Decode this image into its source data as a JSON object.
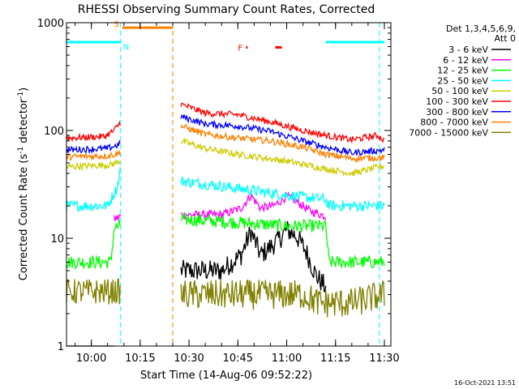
{
  "chart_data": {
    "type": "line",
    "title": "RHESSI Observing Summary Count Rates, Corrected",
    "xlabel": "Start Time (14-Aug-06 09:52:22)",
    "ylabel_parts": {
      "base": "Corrected Count Rate (s",
      "sup1": "-1",
      "mid": " detector",
      "sup2": "-1",
      "end": ")"
    },
    "y_scale": "log",
    "ylim": [
      1,
      1000
    ],
    "y_ticks": [
      {
        "value": 1,
        "label": "1"
      },
      {
        "value": 10,
        "label": "10"
      },
      {
        "value": 100,
        "label": "100"
      },
      {
        "value": 1000,
        "label": "1000"
      }
    ],
    "xlim": [
      "09:52:22",
      "11:32:00"
    ],
    "x_ticks": [
      {
        "time": "10:00",
        "label": "10:00"
      },
      {
        "time": "10:15",
        "label": "10:15"
      },
      {
        "time": "10:30",
        "label": "10:30"
      },
      {
        "time": "10:45",
        "label": "10:45"
      },
      {
        "time": "11:00",
        "label": "11:00"
      },
      {
        "time": "11:15",
        "label": "11:15"
      },
      {
        "time": "11:30",
        "label": "11:30"
      }
    ],
    "legend_header": [
      "Det 1,3,4,5,6,9,",
      "Att 0"
    ],
    "legend_position": "top-right",
    "series": [
      {
        "name": "3 - 6 keV",
        "color": "#000000",
        "segments": [
          {
            "start": "09:52:22",
            "end": "10:07:00",
            "level": 0,
            "noise": 0
          },
          {
            "start": "10:27:30",
            "end": "11:12:00",
            "points": [
              [
                "10:27:30",
                5.0
              ],
              [
                "10:40:00",
                5.0
              ],
              [
                "10:46:00",
                7.0
              ],
              [
                "10:49:00",
                11.5
              ],
              [
                "10:52:00",
                7.0
              ],
              [
                "10:54:00",
                7.8
              ],
              [
                "10:58:00",
                10.0
              ],
              [
                "11:00:00",
                12.0
              ],
              [
                "11:03:00",
                10.5
              ],
              [
                "11:06:00",
                7.5
              ],
              [
                "11:09:00",
                4.5
              ],
              [
                "11:12:00",
                3.5
              ]
            ],
            "noise": 0.1
          }
        ]
      },
      {
        "name": "6 - 12 keV",
        "color": "#ff00ff",
        "segments": [
          {
            "start": "10:07:00",
            "end": "10:09:00",
            "points": [
              [
                "10:07:00",
                15.0
              ],
              [
                "10:09:00",
                16.0
              ]
            ],
            "noise": 0.04
          },
          {
            "start": "10:27:30",
            "end": "11:12:00",
            "points": [
              [
                "10:27:30",
                16.5
              ],
              [
                "10:40:00",
                16.5
              ],
              [
                "10:46:00",
                19.0
              ],
              [
                "10:49:00",
                25.0
              ],
              [
                "10:52:00",
                19.0
              ],
              [
                "10:56:00",
                20.0
              ],
              [
                "11:00:00",
                24.5
              ],
              [
                "11:03:00",
                22.0
              ],
              [
                "11:07:00",
                18.0
              ],
              [
                "11:12:00",
                16.0
              ]
            ],
            "noise": 0.04
          }
        ]
      },
      {
        "name": "12 - 25 keV",
        "color": "#00ff00",
        "segments": [
          {
            "start": "09:52:22",
            "end": "10:09:00",
            "points": [
              [
                "09:52:22",
                6.0
              ],
              [
                "10:06:00",
                6.0
              ],
              [
                "10:07:00",
                12.5
              ],
              [
                "10:09:00",
                13.0
              ]
            ],
            "noise": 0.06
          },
          {
            "start": "10:27:30",
            "end": "11:30:00",
            "points": [
              [
                "10:27:30",
                15.0
              ],
              [
                "10:45:00",
                14.0
              ],
              [
                "11:00:00",
                13.0
              ],
              [
                "11:12:00",
                13.0
              ],
              [
                "11:13:00",
                6.0
              ],
              [
                "11:30:00",
                6.0
              ]
            ],
            "noise": 0.06
          }
        ]
      },
      {
        "name": "25 - 50 keV",
        "color": "#00ffff",
        "segments": [
          {
            "start": "09:52:22",
            "end": "10:09:00",
            "points": [
              [
                "09:52:22",
                20.0
              ],
              [
                "10:05:00",
                20.0
              ],
              [
                "10:08:00",
                30.0
              ],
              [
                "10:09:00",
                45.0
              ]
            ],
            "noise": 0.05
          },
          {
            "start": "10:27:30",
            "end": "11:30:00",
            "points": [
              [
                "10:27:30",
                34.0
              ],
              [
                "10:45:00",
                29.0
              ],
              [
                "11:00:00",
                25.0
              ],
              [
                "11:12:00",
                23.0
              ],
              [
                "11:13:00",
                20.0
              ],
              [
                "11:30:00",
                20.0
              ]
            ],
            "noise": 0.05
          }
        ]
      },
      {
        "name": "50 - 100 keV",
        "color": "#cccc00",
        "segments": [
          {
            "start": "09:52:22",
            "end": "10:09:00",
            "points": [
              [
                "09:52:22",
                46.0
              ],
              [
                "10:06:00",
                48.0
              ],
              [
                "10:09:00",
                52.0
              ]
            ],
            "noise": 0.03
          },
          {
            "start": "10:27:30",
            "end": "11:30:00",
            "points": [
              [
                "10:27:30",
                80.0
              ],
              [
                "10:35:00",
                68.0
              ],
              [
                "10:45:00",
                60.0
              ],
              [
                "11:00:00",
                52.0
              ],
              [
                "11:12:00",
                44.0
              ],
              [
                "11:20:00",
                40.0
              ],
              [
                "11:30:00",
                47.0
              ]
            ],
            "noise": 0.03
          }
        ]
      },
      {
        "name": "100 - 300 keV",
        "color": "#ff0000",
        "segments": [
          {
            "start": "09:52:22",
            "end": "10:09:00",
            "points": [
              [
                "09:52:22",
                85.0
              ],
              [
                "10:04:00",
                88.0
              ],
              [
                "10:07:00",
                100.0
              ],
              [
                "10:09:00",
                120.0
              ]
            ],
            "noise": 0.03
          },
          {
            "start": "10:27:30",
            "end": "11:30:00",
            "points": [
              [
                "10:27:30",
                175.0
              ],
              [
                "10:35:00",
                145.0
              ],
              [
                "10:45:00",
                140.0
              ],
              [
                "10:55:00",
                120.0
              ],
              [
                "11:05:00",
                100.0
              ],
              [
                "11:12:00",
                90.0
              ],
              [
                "11:20:00",
                82.0
              ],
              [
                "11:28:00",
                90.0
              ],
              [
                "11:30:00",
                80.0
              ]
            ],
            "noise": 0.03
          }
        ]
      },
      {
        "name": "300 - 800 keV",
        "color": "#0000ff",
        "segments": [
          {
            "start": "09:52:22",
            "end": "10:09:00",
            "points": [
              [
                "09:52:22",
                66.0
              ],
              [
                "10:05:00",
                68.0
              ],
              [
                "10:09:00",
                75.0
              ]
            ],
            "noise": 0.03
          },
          {
            "start": "10:27:30",
            "end": "11:30:00",
            "points": [
              [
                "10:27:30",
                135.0
              ],
              [
                "10:35:00",
                115.0
              ],
              [
                "10:45:00",
                110.0
              ],
              [
                "10:55:00",
                98.0
              ],
              [
                "11:05:00",
                80.0
              ],
              [
                "11:12:00",
                70.0
              ],
              [
                "11:20:00",
                62.0
              ],
              [
                "11:30:00",
                66.0
              ]
            ],
            "noise": 0.03
          }
        ]
      },
      {
        "name": "800 - 7000 keV",
        "color": "#ff8000",
        "segments": [
          {
            "start": "09:52:22",
            "end": "10:09:00",
            "points": [
              [
                "09:52:22",
                57.0
              ],
              [
                "10:05:00",
                58.0
              ],
              [
                "10:09:00",
                62.0
              ]
            ],
            "noise": 0.03
          },
          {
            "start": "10:27:30",
            "end": "11:30:00",
            "points": [
              [
                "10:27:30",
                110.0
              ],
              [
                "10:35:00",
                92.0
              ],
              [
                "10:45:00",
                85.0
              ],
              [
                "10:55:00",
                80.0
              ],
              [
                "11:05:00",
                70.0
              ],
              [
                "11:12:00",
                60.0
              ],
              [
                "11:20:00",
                55.0
              ],
              [
                "11:30:00",
                56.0
              ]
            ],
            "noise": 0.03
          }
        ]
      },
      {
        "name": "7000 - 15000 keV",
        "color": "#808000",
        "segments": [
          {
            "start": "09:52:22",
            "end": "10:09:00",
            "points": [
              [
                "09:52:22",
                3.2
              ],
              [
                "10:09:00",
                3.2
              ]
            ],
            "noise": 0.12
          },
          {
            "start": "10:27:30",
            "end": "11:30:00",
            "points": [
              [
                "10:27:30",
                3.0
              ],
              [
                "11:05:00",
                3.0
              ],
              [
                "11:10:00",
                2.5
              ],
              [
                "11:20:00",
                2.5
              ],
              [
                "11:30:00",
                3.0
              ]
            ],
            "noise": 0.14
          }
        ]
      }
    ],
    "flags": [
      {
        "label": "S",
        "color": "#ff8000",
        "segments": [
          [
            "10:09:30",
            "10:25:00"
          ]
        ],
        "level": 900
      },
      {
        "label": "N",
        "color": "#00ffff",
        "segments": [
          [
            "09:52:22",
            "10:09:00"
          ],
          [
            "11:12:00",
            "11:30:00"
          ]
        ],
        "level": 660
      },
      {
        "label": "F",
        "color": "#ff0000",
        "segments": [
          [
            "10:47:30",
            "10:48:00"
          ],
          [
            "10:56:30",
            "10:58:30"
          ]
        ],
        "level": 590
      }
    ],
    "vertical_lines": [
      {
        "time": "10:09:00",
        "color": "#00ffff"
      },
      {
        "time": "10:25:00",
        "color": "#ff8000"
      },
      {
        "time": "11:28:30",
        "color": "#00ffff"
      }
    ],
    "footer_date": "16-Oct-2021 13:51"
  }
}
